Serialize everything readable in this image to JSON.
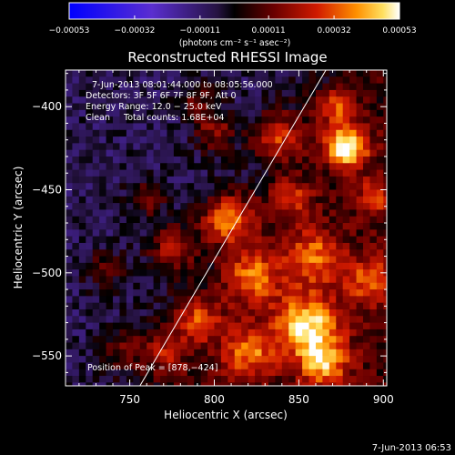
{
  "chart_data": {
    "type": "heatmap",
    "title": "Reconstructed RHESSI Image",
    "xlabel": "Heliocentric X (arcsec)",
    "ylabel": "Heliocentric Y (arcsec)",
    "xlim": [
      712,
      902
    ],
    "ylim": [
      -568,
      -378
    ],
    "x_ticks": [
      750,
      800,
      850,
      900
    ],
    "x_tick_labels": [
      "750",
      "800",
      "850",
      "900"
    ],
    "y_ticks": [
      -400,
      -450,
      -500,
      -550
    ],
    "y_tick_labels": [
      "−400",
      "−450",
      "−500",
      "−550"
    ],
    "colorbar": {
      "min": -0.00053,
      "max": 0.00053,
      "ticks": [
        -0.00053,
        -0.00032,
        -0.00011,
        0.00011,
        0.00032,
        0.00053
      ],
      "tick_labels": [
        "−0.00053",
        "−0.00032",
        "−0.00011",
        "0.00011",
        "0.00032",
        "0.00053"
      ],
      "unit_label": "(photons cm⁻² s⁻¹ asec⁻²)"
    },
    "annotations": [
      "7-Jun-2013 08:01:44.000 to 08:05:56.000",
      "Detectors: 3F 5F 6F 7F 8F 9F, Att 0",
      "Energy Range: 12.0 − 25.0 keV",
      "Clean     Total counts: 1.68E+04"
    ],
    "peak_label": "Position of Peak = [878,−424]",
    "peak": [
      878,
      -424
    ],
    "limb_line": [
      [
        756,
        -568
      ],
      [
        866,
        -378
      ]
    ],
    "colors": {
      "limb": "#ffffff",
      "background": "#000000"
    }
  },
  "footer": {
    "timestamp": "7-Jun-2013 06:53"
  }
}
